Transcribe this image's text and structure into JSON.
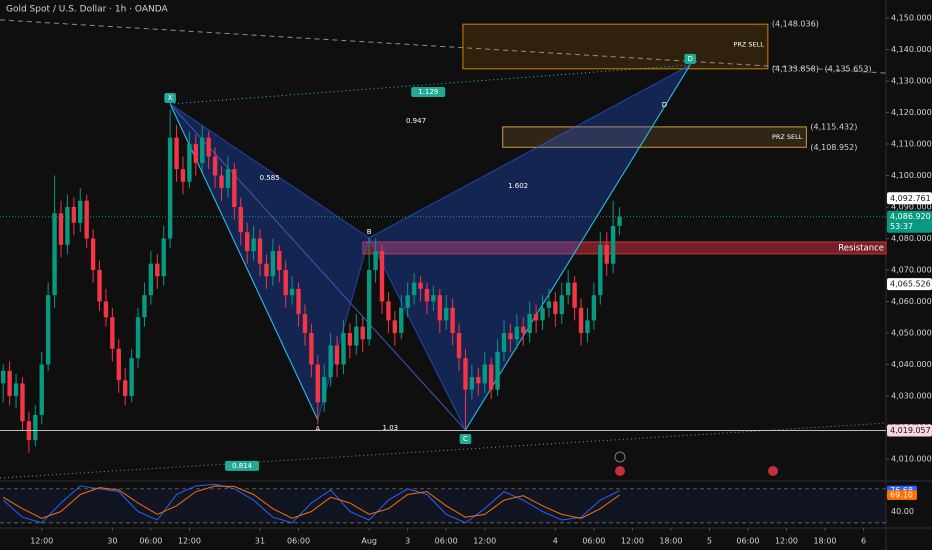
{
  "chart_data": {
    "type": "candlestick",
    "title": "Gold Spot / U.S. Dollar · 1h · OANDA",
    "up_color": "#089981",
    "down_color": "#f23645",
    "xlim": [
      -0.5,
      137.5
    ],
    "ylim": [
      4003.33,
      4155.71
    ],
    "xticks": [
      {
        "value": 6,
        "label": "12:00"
      },
      {
        "value": 17,
        "label": "30"
      },
      {
        "value": 23,
        "label": "06:00"
      },
      {
        "value": 29,
        "label": "12:00"
      },
      {
        "value": 40,
        "label": "31"
      },
      {
        "value": 46,
        "label": "06:00"
      },
      {
        "value": 57,
        "label": "Aug"
      },
      {
        "value": 63,
        "label": "3"
      },
      {
        "value": 69,
        "label": "06:00"
      },
      {
        "value": 75,
        "label": "12:00"
      },
      {
        "value": 86,
        "label": "4"
      },
      {
        "value": 92,
        "label": "06:00"
      },
      {
        "value": 98,
        "label": "12:00"
      },
      {
        "value": 104,
        "label": "18:00"
      },
      {
        "value": 110,
        "label": "5"
      },
      {
        "value": 116,
        "label": "06:00"
      },
      {
        "value": 122,
        "label": "12:00"
      },
      {
        "value": 128,
        "label": "18:00"
      },
      {
        "value": 134,
        "label": "6"
      }
    ],
    "yticks": [
      {
        "value": 4010,
        "label": "4,010.000"
      },
      {
        "value": 4020,
        "label": "4,020.000"
      },
      {
        "value": 4030,
        "label": "4,030.000"
      },
      {
        "value": 4040,
        "label": "4,040.000"
      },
      {
        "value": 4050,
        "label": "4,050.000"
      },
      {
        "value": 4060,
        "label": "4,060.000"
      },
      {
        "value": 4070,
        "label": "4,070.000"
      },
      {
        "value": 4080,
        "label": "4,080.000"
      },
      {
        "value": 4090,
        "label": "4,090.000"
      },
      {
        "value": 4100,
        "label": "4,100.000"
      },
      {
        "value": 4110,
        "label": "4,110.000"
      },
      {
        "value": 4120,
        "label": "4,120.000"
      },
      {
        "value": 4130,
        "label": "4,130.000"
      },
      {
        "value": 4140,
        "label": "4,140.000"
      },
      {
        "value": 4150,
        "label": "4,150.000"
      }
    ],
    "ohlc": [
      [
        4034,
        4040,
        4028,
        4038
      ],
      [
        4038,
        4041,
        4027,
        4030
      ],
      [
        4030,
        4037,
        4026,
        4034
      ],
      [
        4034,
        4036,
        4019,
        4022
      ],
      [
        4022,
        4025,
        4012,
        4016
      ],
      [
        4016,
        4027,
        4014,
        4024
      ],
      [
        4024,
        4044,
        4021,
        4040
      ],
      [
        4040,
        4066,
        4038,
        4062
      ],
      [
        4062,
        4100,
        4058,
        4088
      ],
      [
        4088,
        4092,
        4074,
        4078
      ],
      [
        4078,
        4094,
        4075,
        4090
      ],
      [
        4090,
        4093,
        4081,
        4085
      ],
      [
        4085,
        4096,
        4082,
        4092
      ],
      [
        4092,
        4094,
        4077,
        4080
      ],
      [
        4080,
        4083,
        4066,
        4070
      ],
      [
        4070,
        4073,
        4057,
        4060
      ],
      [
        4060,
        4064,
        4052,
        4055
      ],
      [
        4055,
        4058,
        4041,
        4045
      ],
      [
        4045,
        4048,
        4031,
        4035
      ],
      [
        4035,
        4039,
        4027,
        4030
      ],
      [
        4030,
        4045,
        4028,
        4042
      ],
      [
        4042,
        4058,
        4039,
        4055
      ],
      [
        4055,
        4066,
        4052,
        4062
      ],
      [
        4062,
        4076,
        4059,
        4072
      ],
      [
        4072,
        4075,
        4064,
        4068
      ],
      [
        4068,
        4084,
        4065,
        4080
      ],
      [
        4080,
        4121,
        4077,
        4112
      ],
      [
        4112,
        4116,
        4098,
        4102
      ],
      [
        4102,
        4106,
        4094,
        4098
      ],
      [
        4098,
        4114,
        4096,
        4110
      ],
      [
        4110,
        4113,
        4100,
        4104
      ],
      [
        4104,
        4116,
        4101,
        4112
      ],
      [
        4112,
        4114,
        4102,
        4106
      ],
      [
        4106,
        4109,
        4096,
        4100
      ],
      [
        4100,
        4103,
        4092,
        4096
      ],
      [
        4096,
        4106,
        4093,
        4102
      ],
      [
        4102,
        4104,
        4086,
        4090
      ],
      [
        4090,
        4093,
        4078,
        4082
      ],
      [
        4082,
        4085,
        4072,
        4076
      ],
      [
        4076,
        4084,
        4073,
        4080
      ],
      [
        4080,
        4083,
        4068,
        4072
      ],
      [
        4072,
        4075,
        4064,
        4068
      ],
      [
        4068,
        4080,
        4065,
        4076
      ],
      [
        4076,
        4078,
        4066,
        4070
      ],
      [
        4070,
        4073,
        4058,
        4062
      ],
      [
        4062,
        4068,
        4059,
        4064
      ],
      [
        4064,
        4066,
        4052,
        4056
      ],
      [
        4056,
        4059,
        4046,
        4050
      ],
      [
        4050,
        4053,
        4036,
        4040
      ],
      [
        4040,
        4043,
        4021,
        4028
      ],
      [
        4028,
        4040,
        4025,
        4036
      ],
      [
        4036,
        4050,
        4033,
        4046
      ],
      [
        4046,
        4049,
        4036,
        4040
      ],
      [
        4040,
        4054,
        4037,
        4050
      ],
      [
        4050,
        4053,
        4042,
        4046
      ],
      [
        4046,
        4056,
        4043,
        4052
      ],
      [
        4052,
        4055,
        4044,
        4048
      ],
      [
        4048,
        4080,
        4046,
        4070
      ],
      [
        4070,
        4080,
        4066,
        4076
      ],
      [
        4076,
        4078,
        4056,
        4060
      ],
      [
        4060,
        4063,
        4050,
        4054
      ],
      [
        4054,
        4057,
        4046,
        4050
      ],
      [
        4050,
        4062,
        4048,
        4058
      ],
      [
        4058,
        4066,
        4055,
        4062
      ],
      [
        4062,
        4069,
        4059,
        4066
      ],
      [
        4066,
        4068,
        4060,
        4064
      ],
      [
        4064,
        4066,
        4056,
        4060
      ],
      [
        4060,
        4065,
        4057,
        4062
      ],
      [
        4062,
        4064,
        4050,
        4054
      ],
      [
        4054,
        4062,
        4051,
        4058
      ],
      [
        4058,
        4061,
        4046,
        4050
      ],
      [
        4050,
        4053,
        4038,
        4042
      ],
      [
        4042,
        4045,
        4019.5,
        4032
      ],
      [
        4032,
        4040,
        4029,
        4036
      ],
      [
        4036,
        4039,
        4030,
        4034
      ],
      [
        4034,
        4044,
        4031,
        4040
      ],
      [
        4040,
        4042,
        4029,
        4032
      ],
      [
        4032,
        4048,
        4030,
        4044
      ],
      [
        4044,
        4054,
        4041,
        4050
      ],
      [
        4050,
        4053,
        4044,
        4048
      ],
      [
        4048,
        4056,
        4045,
        4052
      ],
      [
        4052,
        4055,
        4046,
        4050
      ],
      [
        4050,
        4060,
        4047,
        4056
      ],
      [
        4056,
        4059,
        4050,
        4054
      ],
      [
        4054,
        4062,
        4051,
        4058
      ],
      [
        4058,
        4064,
        4055,
        4060
      ],
      [
        4060,
        4063,
        4052,
        4056
      ],
      [
        4056,
        4066,
        4053,
        4062
      ],
      [
        4062,
        4070,
        4059,
        4066
      ],
      [
        4066,
        4068,
        4054,
        4058
      ],
      [
        4058,
        4061,
        4046,
        4050
      ],
      [
        4050,
        4058,
        4047,
        4054
      ],
      [
        4054,
        4066,
        4051,
        4062
      ],
      [
        4062,
        4082,
        4059,
        4078
      ],
      [
        4078,
        4082,
        4068,
        4072
      ],
      [
        4072,
        4092,
        4069,
        4084
      ],
      [
        4084,
        4090,
        4081,
        4086.92
      ]
    ],
    "price_labels": [
      {
        "value": 4092.761,
        "label": "4,092.761",
        "color": "#ffffff",
        "line": false
      },
      {
        "value": 4065.526,
        "label": "4,065.526",
        "color": "#ffffff",
        "line": false
      },
      {
        "value": 4019.057,
        "label": "4,019.057",
        "color": "#f8d7e0",
        "line": true
      }
    ],
    "current": {
      "value": 4086.92,
      "label": "4,086.920",
      "countdown": "53:37",
      "color": "#089981"
    },
    "pattern": {
      "color": "#2962ff",
      "edge": "#26c6da",
      "points": [
        {
          "label": "X",
          "x": 26,
          "y": 4122.7,
          "boxed": true
        },
        {
          "label": "A",
          "x": 49,
          "y": 4022.4,
          "boxed": false
        },
        {
          "label": "B",
          "x": 57,
          "y": 4080.2,
          "boxed": false
        },
        {
          "label": "C",
          "x": 72,
          "y": 4019.2,
          "boxed": true
        },
        {
          "label": "D",
          "x": 107,
          "y": 4135.1,
          "boxed": true
        }
      ],
      "ratios": [
        {
          "label": "0.585",
          "x": 41.5,
          "y": 4099.2,
          "boxed": false
        },
        {
          "label": "0.947",
          "x": 64.3,
          "y": 4117.3,
          "boxed": false
        },
        {
          "label": "1.129",
          "x": 66.2,
          "y": 4126.5,
          "boxed": true
        },
        {
          "label": "1.602",
          "x": 80.2,
          "y": 4096.7,
          "boxed": false
        },
        {
          "label": "1.03",
          "x": 60.3,
          "y": 4019.8,
          "boxed": false
        },
        {
          "label": "0.814",
          "x": 37.2,
          "y": 4007.8,
          "boxed": true
        },
        {
          "label": "D",
          "x": 103,
          "y": 4122.3,
          "boxed": false
        }
      ]
    },
    "zones": [
      {
        "label": "PRZ SELL",
        "top": 4148.036,
        "bottom": 4133.858,
        "x0": 71.6,
        "x1": 119.1,
        "color": "#ff9800",
        "value_labels": [
          "(4,148.036)",
          "(4,133.858)"
        ],
        "levels": [
          {
            "value": 4135.653,
            "label": "(4,135.653)"
          }
        ]
      },
      {
        "label": "PRZ SELL",
        "top": 4115.432,
        "bottom": 4108.952,
        "x0": 77.8,
        "x1": 125.1,
        "color": "#ffb74d",
        "value_labels": [
          "(4,115.432)",
          "(4,108.952)"
        ],
        "levels": []
      },
      {
        "label": "Resistance",
        "top": 4078.9,
        "bottom": 4075.1,
        "x0": 56,
        "x1": 137.5,
        "color": "#f23645",
        "value_labels": [],
        "levels": []
      }
    ],
    "lines": [
      {
        "style": "dashed",
        "color": "#8a8d96",
        "x": [
          -0.5,
          137.5
        ],
        "y": [
          4149.4,
          4132.5
        ]
      },
      {
        "style": "dotted",
        "color": "#8a8d96",
        "x": [
          -0.5,
          137.5
        ],
        "y": [
          4003.97,
          4021.4
        ]
      }
    ],
    "oscillator": {
      "type": "line",
      "ylim": [
        18,
        92
      ],
      "yticks": [
        {
          "value": 40,
          "label": "40.00"
        }
      ],
      "levels": [
        80,
        20
      ],
      "x": [
        0,
        3,
        6,
        9,
        12,
        15,
        18,
        21,
        24,
        27,
        30,
        33,
        36,
        39,
        42,
        45,
        48,
        51,
        54,
        57,
        60,
        63,
        66,
        69,
        72,
        75,
        78,
        81,
        84,
        87,
        90,
        93,
        96
      ],
      "series": [
        {
          "color": "#2962ff",
          "values": [
            60,
            30,
            20,
            55,
            85,
            80,
            75,
            40,
            25,
            70,
            85,
            88,
            80,
            60,
            30,
            20,
            55,
            78,
            40,
            25,
            60,
            80,
            70,
            35,
            20,
            45,
            75,
            60,
            40,
            25,
            30,
            60,
            76.68
          ],
          "value_label": "76.68"
        },
        {
          "color": "#ff6d00",
          "values": [
            65,
            45,
            28,
            40,
            70,
            82,
            78,
            55,
            35,
            50,
            75,
            85,
            84,
            70,
            45,
            28,
            40,
            65,
            55,
            35,
            45,
            70,
            75,
            50,
            30,
            35,
            60,
            68,
            50,
            35,
            28,
            45,
            69.1
          ],
          "value_label": "69.10"
        }
      ]
    }
  }
}
